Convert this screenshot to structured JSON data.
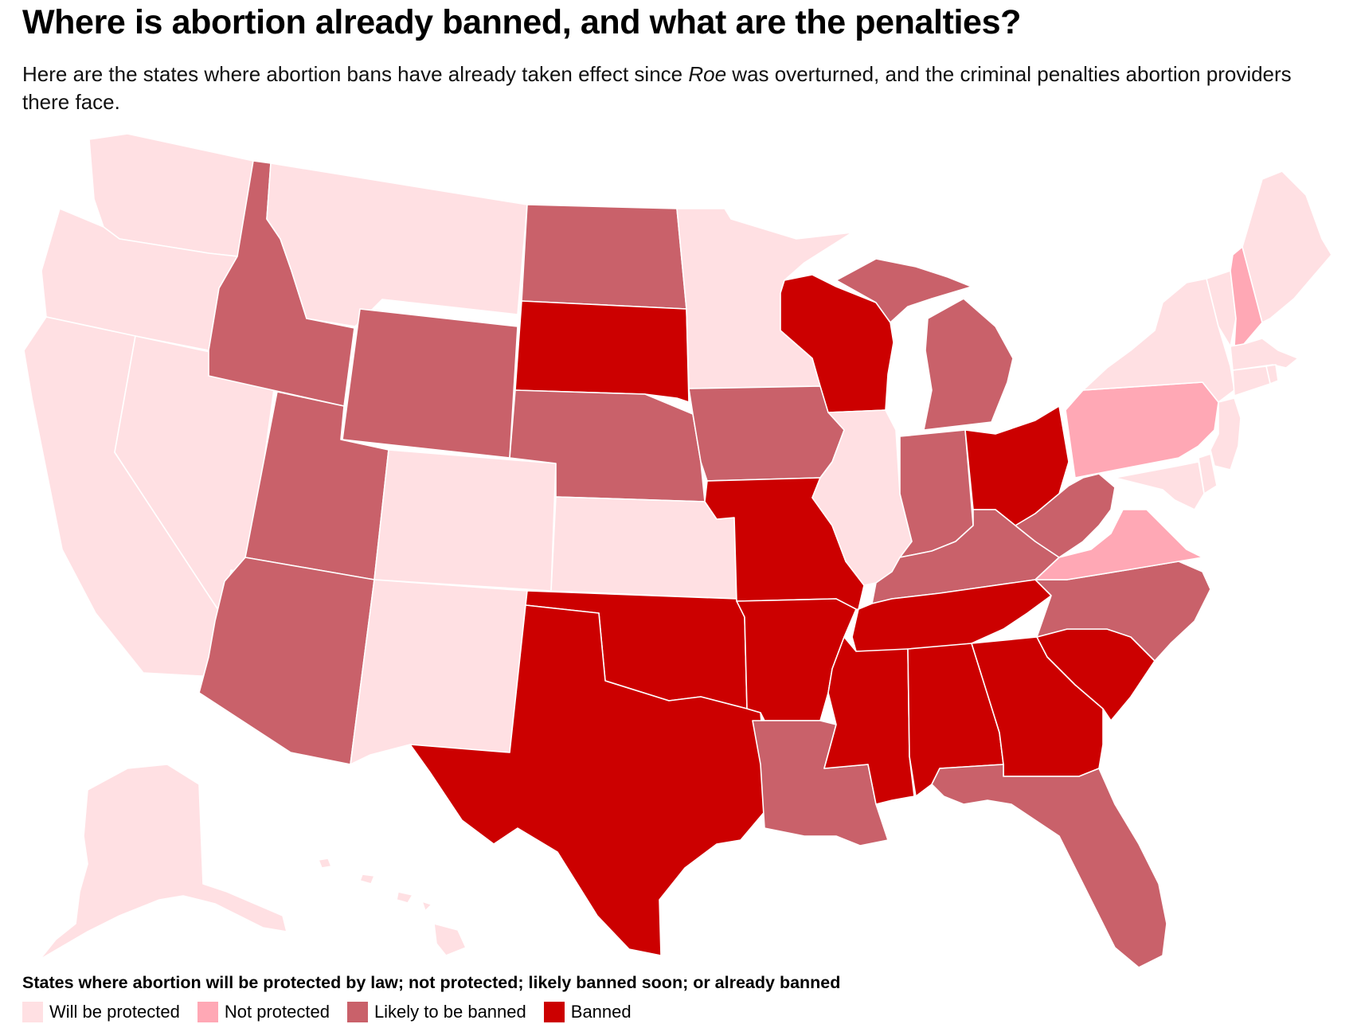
{
  "title": "Where is abortion already banned, and what are the penalties?",
  "subtitle": {
    "before": "Here are the states where abortion bans have already taken effect since ",
    "italic": "Roe",
    "after": " was overturned, and the criminal penalties abortion providers there face."
  },
  "legend": {
    "title": "States where abortion will be protected by law; not protected; likely banned soon; or already banned",
    "items": [
      {
        "key": "protected",
        "label": "Will be protected",
        "color": "#ffe0e3"
      },
      {
        "key": "not_protected",
        "label": "Not protected",
        "color": "#ffa8b5"
      },
      {
        "key": "likely",
        "label": "Likely to be banned",
        "color": "#c9616a"
      },
      {
        "key": "banned",
        "label": "Banned",
        "color": "#cc0000"
      }
    ]
  },
  "states": [
    {
      "name": "WA",
      "category": "protected"
    },
    {
      "name": "OR",
      "category": "protected"
    },
    {
      "name": "CA",
      "category": "protected"
    },
    {
      "name": "NV",
      "category": "protected"
    },
    {
      "name": "ID",
      "category": "likely"
    },
    {
      "name": "MT",
      "category": "protected"
    },
    {
      "name": "WY",
      "category": "likely"
    },
    {
      "name": "UT",
      "category": "likely"
    },
    {
      "name": "AZ",
      "category": "likely"
    },
    {
      "name": "CO",
      "category": "protected"
    },
    {
      "name": "NM",
      "category": "protected"
    },
    {
      "name": "ND",
      "category": "likely"
    },
    {
      "name": "SD",
      "category": "banned"
    },
    {
      "name": "NE",
      "category": "likely"
    },
    {
      "name": "KS",
      "category": "protected"
    },
    {
      "name": "OK",
      "category": "banned"
    },
    {
      "name": "TX",
      "category": "banned"
    },
    {
      "name": "MN",
      "category": "protected"
    },
    {
      "name": "IA",
      "category": "likely"
    },
    {
      "name": "MO",
      "category": "banned"
    },
    {
      "name": "AR",
      "category": "banned"
    },
    {
      "name": "LA",
      "category": "likely"
    },
    {
      "name": "WI",
      "category": "banned"
    },
    {
      "name": "MI",
      "category": "likely"
    },
    {
      "name": "IL",
      "category": "protected"
    },
    {
      "name": "IN",
      "category": "likely"
    },
    {
      "name": "OH",
      "category": "banned"
    },
    {
      "name": "KY",
      "category": "likely"
    },
    {
      "name": "TN",
      "category": "banned"
    },
    {
      "name": "MS",
      "category": "banned"
    },
    {
      "name": "AL",
      "category": "banned"
    },
    {
      "name": "GA",
      "category": "banned"
    },
    {
      "name": "FL",
      "category": "likely"
    },
    {
      "name": "SC",
      "category": "banned"
    },
    {
      "name": "NC",
      "category": "likely"
    },
    {
      "name": "VA",
      "category": "not_protected"
    },
    {
      "name": "WV",
      "category": "likely"
    },
    {
      "name": "PA",
      "category": "not_protected"
    },
    {
      "name": "NY",
      "category": "protected"
    },
    {
      "name": "VT",
      "category": "protected"
    },
    {
      "name": "NH",
      "category": "not_protected"
    },
    {
      "name": "ME",
      "category": "protected"
    },
    {
      "name": "MA",
      "category": "protected"
    },
    {
      "name": "CT",
      "category": "protected"
    },
    {
      "name": "RI",
      "category": "protected"
    },
    {
      "name": "NJ",
      "category": "protected"
    },
    {
      "name": "DE",
      "category": "protected"
    },
    {
      "name": "MD",
      "category": "protected"
    },
    {
      "name": "AK",
      "category": "protected"
    },
    {
      "name": "HI",
      "category": "protected"
    }
  ]
}
